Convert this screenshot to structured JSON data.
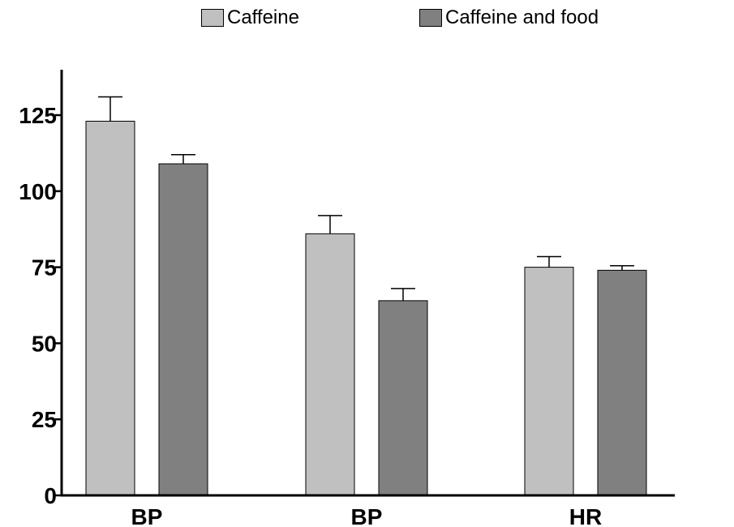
{
  "chart_data": {
    "type": "bar",
    "categories": [
      "BP",
      "BP",
      "HR"
    ],
    "series": [
      {
        "name": "Caffeine",
        "values": [
          123,
          86,
          75
        ],
        "errors": [
          8,
          6,
          3.5
        ],
        "color": "#c0c0c0"
      },
      {
        "name": "Caffeine and food",
        "values": [
          109,
          64,
          74
        ],
        "errors": [
          3,
          4,
          1.5
        ],
        "color": "#808080"
      }
    ],
    "title": "",
    "xlabel": "",
    "ylabel": "",
    "ylim": [
      0,
      140
    ],
    "yticks": [
      0,
      25,
      50,
      75,
      100,
      125
    ],
    "grid": false,
    "legend_position": "top"
  }
}
